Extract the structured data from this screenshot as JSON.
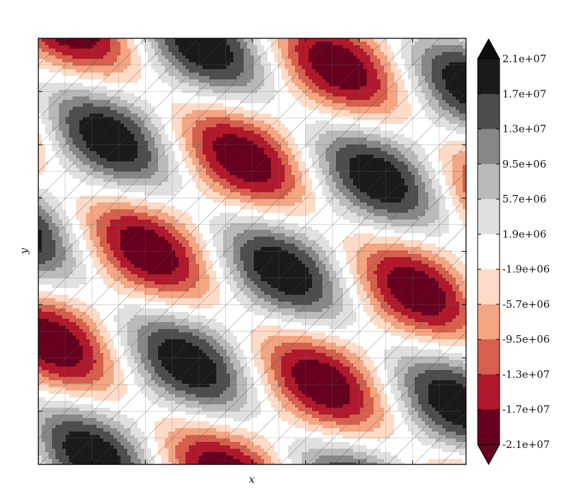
{
  "chart_data": {
    "type": "contourf",
    "title": "",
    "xlabel": "x",
    "ylabel": "y",
    "xlim": [
      0,
      8
    ],
    "ylim": [
      0,
      8
    ],
    "x_tick_labels": [],
    "y_tick_labels": [],
    "grid": true,
    "hatch": "diagonal lines over the whole field",
    "field": "alternating positive and negative blobs on a 4x4 tiling, stretched into a sheared pattern",
    "colormap": "RdGy",
    "extend": "both",
    "levels": [
      -21000000,
      -17000000,
      -13000000,
      -9500000,
      -5700000,
      -1900000,
      1900000,
      5700000,
      9500000,
      13000000,
      17000000,
      21000000
    ],
    "colorbar_tick_labels": [
      "2.1e+07",
      "1.7e+07",
      "1.3e+07",
      "9.5e+06",
      "5.7e+06",
      "1.9e+06",
      "-1.9e+06",
      "-5.7e+06",
      "-9.5e+06",
      "-1.3e+07",
      "-1.7e+07",
      "-2.1e+07"
    ],
    "colorbar_colors": [
      "#1a1a1a",
      "#4d4d4d",
      "#878787",
      "#bababa",
      "#e0e0e0",
      "#ffffff",
      "#fddbc7",
      "#f4a582",
      "#d6604d",
      "#b2182b",
      "#67001f"
    ],
    "extend_colors": {
      "max": "#0d0d0d",
      "min": "#67001f"
    }
  }
}
